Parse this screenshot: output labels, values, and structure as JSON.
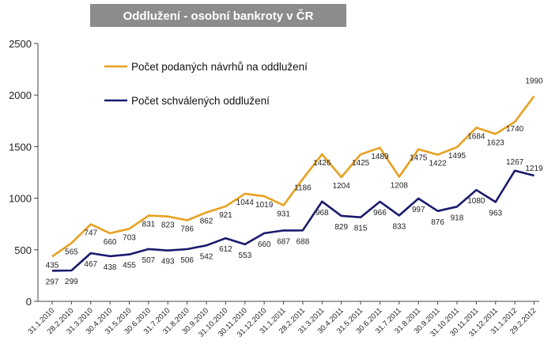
{
  "colors": {
    "series_1": "#E8A020",
    "series_2": "#1A1A6E",
    "title_background": "#8C8C8C",
    "title_text": "#FFFFFF",
    "axis": "#444444"
  },
  "chart_data": {
    "type": "line",
    "title": "Oddlužení - osobní bankroty v ČR",
    "xlabel": "",
    "ylabel": "",
    "ylim": [
      0,
      2500
    ],
    "y_ticks": [
      "0",
      "500",
      "1000",
      "1500",
      "2000",
      "2500"
    ],
    "grid": false,
    "legend_position": "top-left",
    "categories": [
      "31.1.2010",
      "28.2.2010",
      "31.3.2010",
      "30.4.2010",
      "31.5.2010",
      "30.6.2010",
      "31.7.2010",
      "31.8.2010",
      "30.9.2010",
      "31.10.2010",
      "30.11.2010",
      "31.12.2010",
      "31.1.2011",
      "28.2.2011",
      "31.3.2011",
      "30.4.2011",
      "31.5.2011",
      "30.6.2011",
      "31.7.2011",
      "31.8.2011",
      "30.9.2011",
      "31.10.2011",
      "30.11.2011",
      "31.12.2011",
      "31.1.2012",
      "29.2.2012"
    ],
    "series": [
      {
        "name": "Počet podaných návrhů na oddlužení",
        "values": [
          435,
          565,
          747,
          660,
          703,
          831,
          823,
          786,
          862,
          921,
          1044,
          1019,
          931,
          1186,
          1426,
          1204,
          1425,
          1489,
          1208,
          1475,
          1422,
          1495,
          1684,
          1623,
          1740,
          1990
        ]
      },
      {
        "name": "Počet schválených oddlužení",
        "values": [
          297,
          299,
          467,
          438,
          455,
          507,
          493,
          506,
          542,
          612,
          553,
          660,
          687,
          688,
          968,
          829,
          815,
          966,
          833,
          997,
          876,
          918,
          1080,
          963,
          1267,
          1219
        ]
      }
    ]
  }
}
